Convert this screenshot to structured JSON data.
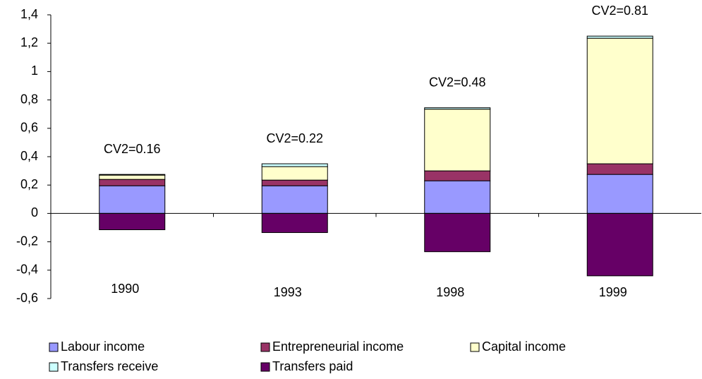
{
  "chart_data": {
    "type": "stacked_bar",
    "categories": [
      "1990",
      "1993",
      "1998",
      "1999"
    ],
    "annotations": [
      "CV2=0.16",
      "CV2=0.22",
      "CV2=0.48",
      "CV2=0.81"
    ],
    "series": [
      {
        "name": "Labour income",
        "color": "#9999ff",
        "values": [
          0.195,
          0.195,
          0.23,
          0.275
        ]
      },
      {
        "name": "Entrepreneurial income",
        "color": "#993366",
        "values": [
          0.045,
          0.04,
          0.07,
          0.075
        ]
      },
      {
        "name": "Capital income",
        "color": "#ffffcc",
        "values": [
          0.03,
          0.095,
          0.435,
          0.885
        ]
      },
      {
        "name": "Transfers receive",
        "color": "#ccffff",
        "values": [
          0.005,
          0.02,
          0.01,
          0.015
        ]
      },
      {
        "name": "Transfers paid",
        "color": "#660066",
        "values": [
          -0.115,
          -0.135,
          -0.27,
          -0.44
        ]
      }
    ],
    "ylim": [
      -0.6,
      1.4
    ],
    "yticks": [
      {
        "value": -0.6,
        "label": "-0,6"
      },
      {
        "value": -0.4,
        "label": "-0,4"
      },
      {
        "value": -0.2,
        "label": "-0,2"
      },
      0,
      {
        "value": 0.2,
        "label": "0,2"
      },
      {
        "value": 0.4,
        "label": "0,4"
      },
      {
        "value": 0.6,
        "label": "0,6"
      },
      {
        "value": 0.8,
        "label": "0,8"
      },
      1,
      {
        "value": 1.2,
        "label": "1,2"
      },
      {
        "value": 1.4,
        "label": "1,4"
      }
    ]
  }
}
